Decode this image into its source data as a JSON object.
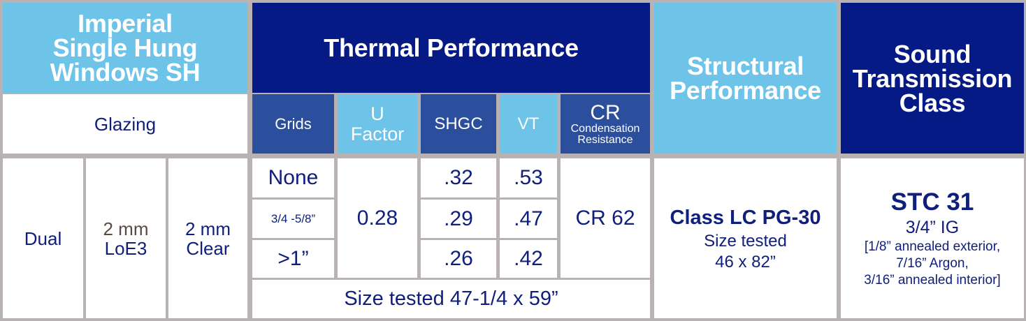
{
  "headers": {
    "product": [
      "Imperial",
      "Single Hung",
      "Windows SH"
    ],
    "glazing": "Glazing",
    "thermal": "Thermal Performance",
    "structural": [
      "Structural",
      "Performance"
    ],
    "sound": [
      "Sound",
      "Transmission",
      "Class"
    ]
  },
  "subheaders": {
    "grids": "Grids",
    "u_factor": [
      "U",
      "Factor"
    ],
    "shgc": "SHGC",
    "vt": "VT",
    "cr": [
      "CR",
      "Condensation",
      "Resistance"
    ]
  },
  "glazing": {
    "type": "Dual",
    "inner": [
      "2 mm",
      "LoE3"
    ],
    "outer": [
      "2 mm",
      "Clear"
    ]
  },
  "rows": [
    {
      "grids": "None",
      "shgc": ".32",
      "vt": ".53"
    },
    {
      "grids": "3/4 -5/8”",
      "shgc": ".29",
      "vt": ".47"
    },
    {
      "grids": ">1”",
      "shgc": ".26",
      "vt": ".42"
    }
  ],
  "u_factor_value": "0.28",
  "cr_value": "CR 62",
  "thermal_size_tested": "Size tested 47-1/4 x 59”",
  "structural": {
    "rating": "Class LC PG-30",
    "size_label": "Size tested",
    "size": "46 x 82”"
  },
  "sound": {
    "rating": "STC 31",
    "ig": "3/4” IG",
    "details": [
      "[1/8” annealed exterior,",
      "7/16” Argon,",
      "3/16” annealed interior]"
    ]
  },
  "colors": {
    "light_blue": "#6ec3e8",
    "dark_blue": "#061a85",
    "mid_blue": "#2b4f9c",
    "text_navy": "#10207a",
    "grid_line": "#b9b2b2"
  }
}
